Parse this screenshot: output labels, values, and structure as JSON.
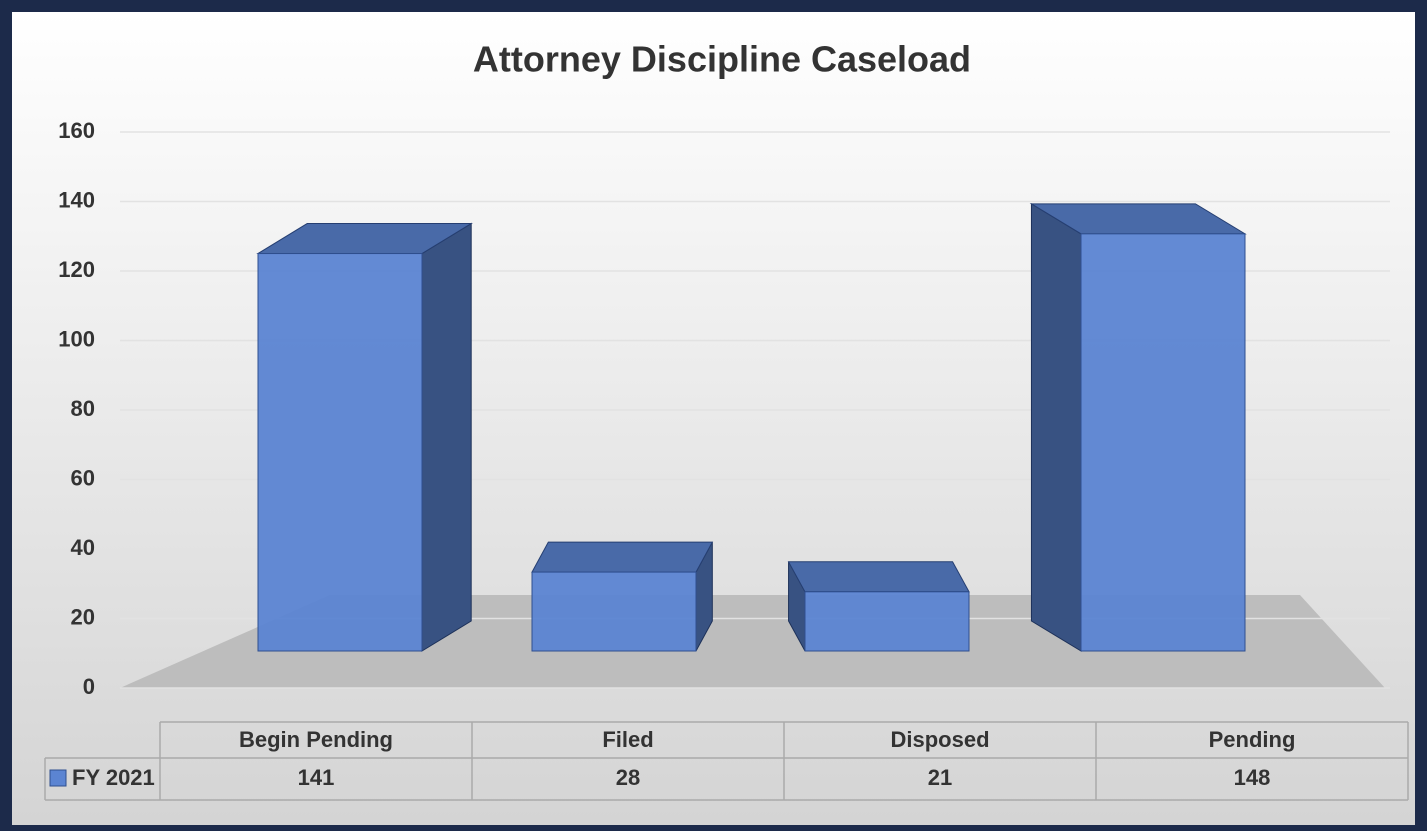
{
  "chart_data": {
    "type": "bar",
    "title": "Attorney Discipline Caseload",
    "categories": [
      "Begin Pending",
      "Filed",
      "Disposed",
      "Pending"
    ],
    "series": [
      {
        "name": "FY 2021",
        "color": "#5b84d2",
        "values": [
          141,
          28,
          21,
          148
        ]
      }
    ],
    "ylim": [
      0,
      160
    ],
    "yticks": [
      0,
      20,
      40,
      60,
      80,
      100,
      120,
      140,
      160
    ],
    "grid": true
  }
}
